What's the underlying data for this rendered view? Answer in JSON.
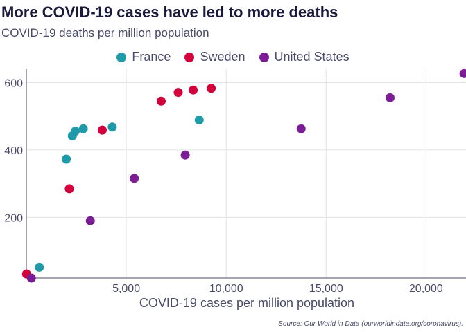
{
  "title": "More COVID-19 cases have led to more deaths",
  "subtitle": "COVID-19 deaths per million population",
  "source": "Source: Our World in Data (ourworldindata.org/coronavirus).",
  "chart_data": {
    "type": "scatter",
    "title": "More COVID-19 cases have led to more deaths",
    "subtitle": "COVID-19 deaths per million population",
    "xlabel": "COVID-19 cases per million population",
    "ylabel": "",
    "xlim": [
      0,
      22000
    ],
    "ylim": [
      20,
      640
    ],
    "xticks": [
      5000,
      10000,
      15000,
      20000
    ],
    "xtick_labels": [
      "5,000",
      "10,000",
      "15,000",
      "20,000"
    ],
    "yticks": [
      200,
      400,
      600
    ],
    "ytick_labels": [
      "200",
      "400",
      "600"
    ],
    "grid": true,
    "legend_position": "top",
    "series": [
      {
        "name": "France",
        "color": "#1f9aa8",
        "points": [
          [
            650,
            52
          ],
          [
            2000,
            373
          ],
          [
            2300,
            442
          ],
          [
            2450,
            456
          ],
          [
            2850,
            463
          ],
          [
            4300,
            468
          ],
          [
            8650,
            489
          ]
        ]
      },
      {
        "name": "Sweden",
        "color": "#d3003c",
        "points": [
          [
            10,
            32
          ],
          [
            2150,
            285
          ],
          [
            3800,
            459
          ],
          [
            6750,
            545
          ],
          [
            7600,
            571
          ],
          [
            8350,
            578
          ],
          [
            9250,
            583
          ]
        ]
      },
      {
        "name": "United States",
        "color": "#7b1d94",
        "points": [
          [
            250,
            10
          ],
          [
            3200,
            190
          ],
          [
            5400,
            316
          ],
          [
            7950,
            385
          ],
          [
            13750,
            463
          ],
          [
            18200,
            555
          ],
          [
            21900,
            627
          ]
        ]
      }
    ]
  }
}
